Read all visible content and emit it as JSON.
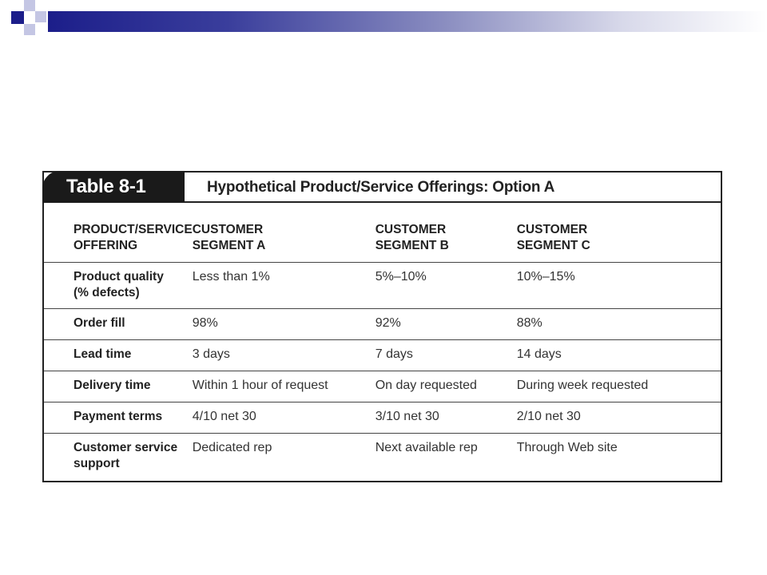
{
  "table": {
    "number_label": "Table 8-1",
    "title": "Hypothetical Product/Service Offerings: Option A",
    "columns": [
      "PRODUCT/SERVICE\nOFFERING",
      "CUSTOMER\nSEGMENT A",
      "CUSTOMER\nSEGMENT B",
      "CUSTOMER\nSEGMENT C"
    ],
    "rows": [
      {
        "label": "Product quality\n(% defects)",
        "a": "Less than 1%",
        "b": "5%–10%",
        "c": "10%–15%"
      },
      {
        "label": "Order fill",
        "a": "98%",
        "b": "92%",
        "c": "88%"
      },
      {
        "label": "Lead time",
        "a": "3 days",
        "b": "7 days",
        "c": "14 days"
      },
      {
        "label": "Delivery time",
        "a": "Within 1 hour of request",
        "b": "On day requested",
        "c": "During week requested"
      },
      {
        "label": "Payment terms",
        "a": "4/10 net 30",
        "b": "3/10 net 30",
        "c": "2/10 net 30"
      },
      {
        "label": "Customer service\nsupport",
        "a": "Dedicated rep",
        "b": "Next available rep",
        "c": "Through Web site"
      }
    ]
  },
  "colors": {
    "header_accent": "#1c1e8a",
    "caption_tab": "#1a1a1a"
  }
}
